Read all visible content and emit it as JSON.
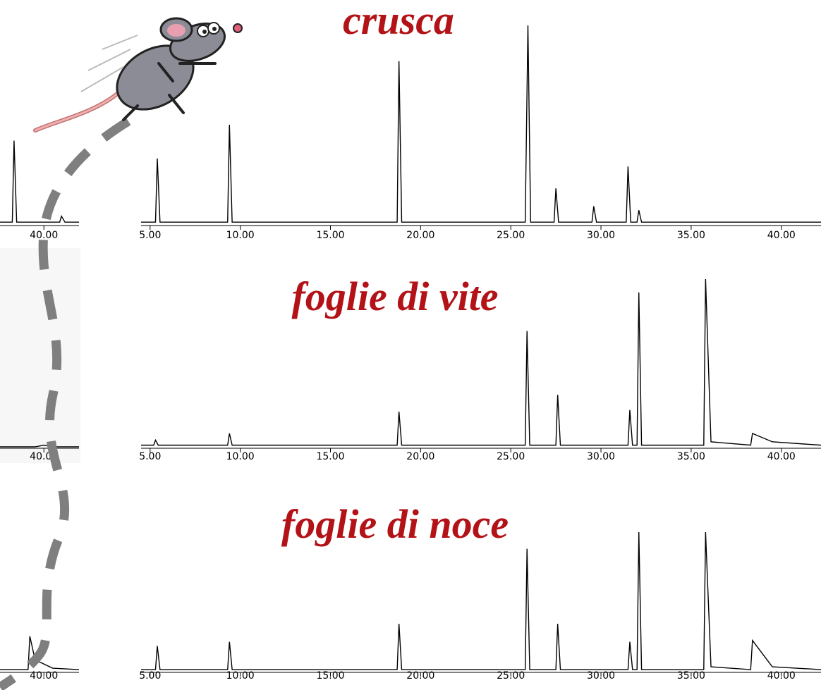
{
  "chart_data": [
    {
      "type": "line",
      "title": "crusca",
      "color": "#000000",
      "x": [
        4.5,
        5.3,
        5.4,
        5.55,
        9.3,
        9.4,
        9.55,
        18.7,
        18.8,
        18.95,
        25.8,
        25.95,
        26.1,
        27.4,
        27.5,
        27.65,
        29.5,
        29.6,
        29.75,
        31.4,
        31.5,
        31.65,
        32.0,
        32.1,
        32.25,
        42.2
      ],
      "values": [
        1,
        1,
        33,
        1,
        1,
        50,
        1,
        1,
        82,
        1,
        1,
        100,
        1,
        1,
        18,
        1,
        1,
        9,
        1,
        1,
        29,
        1,
        1,
        7,
        1,
        1
      ],
      "xlim": [
        4.5,
        42.2
      ],
      "ylim": [
        0,
        100
      ],
      "xticks": [
        {
          "value": 5,
          "label": "5.00"
        },
        {
          "value": 10,
          "label": "10.00"
        },
        {
          "value": 15,
          "label": "15.00"
        },
        {
          "value": 20,
          "label": "20.00"
        },
        {
          "value": 25,
          "label": "25.00"
        },
        {
          "value": 30,
          "label": "30.00"
        },
        {
          "value": 35,
          "label": "35.00"
        },
        {
          "value": 40,
          "label": "40.00"
        }
      ]
    },
    {
      "type": "line",
      "title": "foglie di vite",
      "color": "#000000",
      "x": [
        4.5,
        5.2,
        5.3,
        5.45,
        9.3,
        9.4,
        9.55,
        18.7,
        18.8,
        18.95,
        25.8,
        25.9,
        26.05,
        27.5,
        27.6,
        27.75,
        31.5,
        31.6,
        31.75,
        32.0,
        32.1,
        32.25,
        35.7,
        35.8,
        36.1,
        38.3,
        38.4,
        39.5,
        42.2
      ],
      "values": [
        1,
        1,
        4,
        1,
        1,
        8,
        1,
        1,
        21,
        1,
        1,
        69,
        1,
        1,
        31,
        1,
        1,
        22,
        1,
        1,
        92,
        1,
        1,
        100,
        3,
        1,
        8,
        3,
        1
      ],
      "xlim": [
        4.5,
        42.2
      ],
      "ylim": [
        0,
        100
      ],
      "xticks": [
        {
          "value": 5,
          "label": "5.00"
        },
        {
          "value": 10,
          "label": "10.00"
        },
        {
          "value": 15,
          "label": "15.00"
        },
        {
          "value": 20,
          "label": "20.00"
        },
        {
          "value": 25,
          "label": "25.00"
        },
        {
          "value": 30,
          "label": "30.00"
        },
        {
          "value": 35,
          "label": "35.00"
        },
        {
          "value": 40,
          "label": "40.00"
        }
      ]
    },
    {
      "type": "line",
      "title": "foglie di noce",
      "color": "#000000",
      "x": [
        4.5,
        5.3,
        5.4,
        5.55,
        9.3,
        9.4,
        9.55,
        18.7,
        18.8,
        18.95,
        25.8,
        25.9,
        26.05,
        27.5,
        27.6,
        27.75,
        31.5,
        31.6,
        31.75,
        32.0,
        32.1,
        32.25,
        35.7,
        35.8,
        36.1,
        38.3,
        38.4,
        39.5,
        42.2
      ],
      "values": [
        1,
        1,
        18,
        1,
        1,
        21,
        1,
        1,
        34,
        1,
        1,
        88,
        1,
        1,
        34,
        1,
        1,
        21,
        1,
        1,
        100,
        1,
        1,
        100,
        3,
        1,
        22,
        3,
        1
      ],
      "xlim": [
        4.5,
        42.2
      ],
      "ylim": [
        0,
        100
      ],
      "xticks": [
        {
          "value": 5,
          "label": "5.00"
        },
        {
          "value": 10,
          "label": "10.00"
        },
        {
          "value": 15,
          "label": "15.00"
        },
        {
          "value": 20,
          "label": "20.00"
        },
        {
          "value": 25,
          "label": "25.00"
        },
        {
          "value": 30,
          "label": "30.00"
        },
        {
          "value": 35,
          "label": "35.00"
        },
        {
          "value": 40,
          "label": "40.00"
        }
      ]
    },
    {
      "type": "line",
      "color": "#000000",
      "x": [
        37.5,
        38.2,
        38.3,
        38.45,
        40.9,
        41.0,
        41.2,
        42.0
      ],
      "values": [
        1,
        1,
        42,
        1,
        1,
        4,
        1,
        1
      ],
      "xlim": [
        37.5,
        42.0
      ],
      "ylim": [
        0,
        100
      ],
      "xticks": [
        {
          "value": 40,
          "label": "40.00"
        }
      ]
    },
    {
      "type": "line",
      "color": "#000000",
      "x": [
        37.5,
        39.5,
        40.0,
        40.5,
        42.0
      ],
      "values": [
        0,
        0,
        1,
        0,
        0
      ],
      "xlim": [
        37.5,
        42.0
      ],
      "ylim": [
        0,
        100
      ],
      "xticks": [
        {
          "value": 40,
          "label": "40.00"
        }
      ]
    },
    {
      "type": "line",
      "color": "#000000",
      "x": [
        37.5,
        39.1,
        39.2,
        39.5,
        40.5,
        42.0
      ],
      "values": [
        1,
        1,
        25,
        8,
        2,
        1
      ],
      "xlim": [
        37.5,
        42.0
      ],
      "ylim": [
        0,
        100
      ],
      "xticks": [
        {
          "value": 40,
          "label": "40.00"
        }
      ]
    }
  ]
}
